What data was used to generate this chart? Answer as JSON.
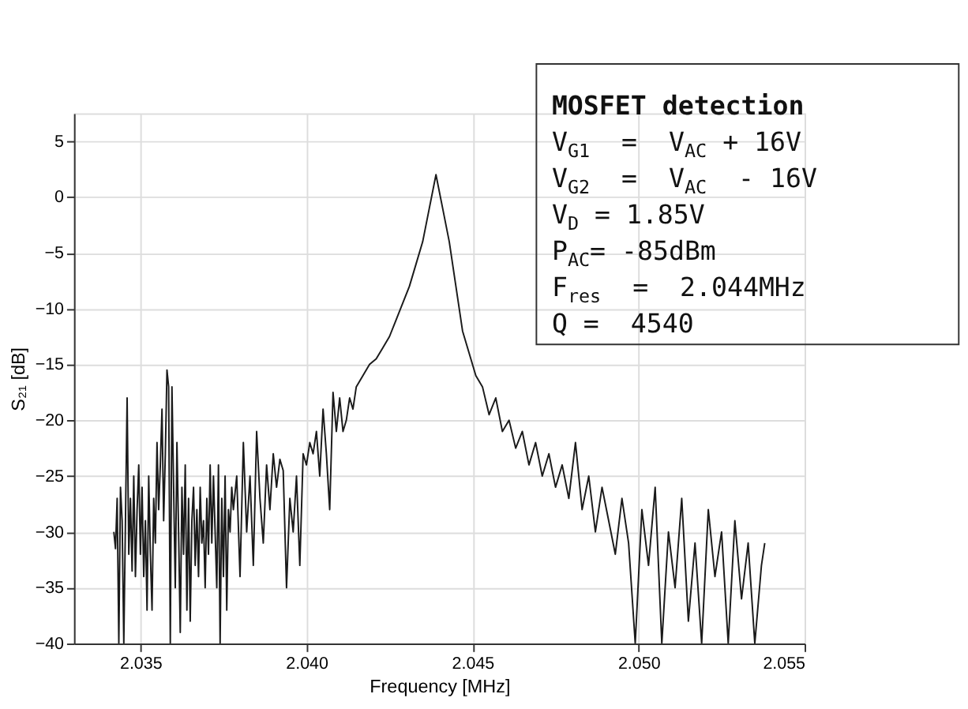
{
  "chart_data": {
    "type": "line",
    "xlabel": "Frequency [MHz]",
    "ylabel": "S₂₁ [dB]",
    "xlim": [
      2.033,
      2.055
    ],
    "xticks": [
      {
        "value": 2.035,
        "label": "2.035"
      },
      {
        "value": 2.04,
        "label": "2.040"
      },
      {
        "value": 2.045,
        "label": "2.045"
      },
      {
        "value": 2.05,
        "label": "2.050"
      },
      {
        "value": 2.055,
        "label": "2.055"
      }
    ],
    "ylim": [
      -40,
      7.5
    ],
    "yticks": [
      -40,
      -35,
      -30,
      -25,
      -20,
      -15,
      -10,
      -5,
      0,
      5
    ],
    "grid": true,
    "line_style": "solid",
    "annotations": [
      "MOSFET detection",
      "V$_{G1}$  =  V$_{AC}$ + 16V",
      "V$_{G2}$  =  V$_{AC}$  - 16V",
      "V$_{D}$ = 1.85V",
      "P$_{AC}$= -85dBm",
      "F$_{res}$  =  2.044MHz",
      "Q =  4540"
    ],
    "series": [
      {
        "color": "#1a1a1a",
        "x": [
          2.0342,
          2.03425,
          2.0343,
          2.03435,
          2.0344,
          2.03445,
          2.0345,
          2.03455,
          2.0346,
          2.03465,
          2.0347,
          2.03475,
          2.0348,
          2.03485,
          2.0349,
          2.03495,
          2.035,
          2.03505,
          2.0351,
          2.03515,
          2.0352,
          2.03525,
          2.0353,
          2.03535,
          2.0354,
          2.03545,
          2.0355,
          2.03555,
          2.0356,
          2.03565,
          2.0357,
          2.03575,
          2.0358,
          2.03585,
          2.0359,
          2.03595,
          2.036,
          2.03605,
          2.0361,
          2.03615,
          2.0362,
          2.03625,
          2.0363,
          2.03635,
          2.0364,
          2.03645,
          2.0365,
          2.03655,
          2.0366,
          2.03665,
          2.0367,
          2.03675,
          2.0368,
          2.03685,
          2.0369,
          2.03695,
          2.037,
          2.03705,
          2.0371,
          2.03715,
          2.0372,
          2.03725,
          2.0373,
          2.03735,
          2.0374,
          2.03745,
          2.0375,
          2.03755,
          2.0376,
          2.03765,
          2.0377,
          2.03775,
          2.0378,
          2.0379,
          2.038,
          2.0381,
          2.0382,
          2.0383,
          2.0384,
          2.0385,
          2.0386,
          2.0387,
          2.0388,
          2.0389,
          2.039,
          2.0391,
          2.0392,
          2.0393,
          2.0394,
          2.0395,
          2.0396,
          2.0397,
          2.0398,
          2.0399,
          2.04,
          2.0401,
          2.0402,
          2.0403,
          2.0404,
          2.0405,
          2.0406,
          2.0407,
          2.0408,
          2.0409,
          2.041,
          2.0411,
          2.0412,
          2.0413,
          2.0414,
          2.0415,
          2.0417,
          2.0419,
          2.0421,
          2.0423,
          2.0425,
          2.0427,
          2.0429,
          2.0431,
          2.0433,
          2.0435,
          2.0437,
          2.0439,
          2.0441,
          2.0443,
          2.0445,
          2.0447,
          2.0449,
          2.0451,
          2.0453,
          2.0455,
          2.0457,
          2.0459,
          2.0461,
          2.0463,
          2.0465,
          2.0467,
          2.0469,
          2.0471,
          2.0473,
          2.0475,
          2.0477,
          2.0479,
          2.0481,
          2.0483,
          2.0485,
          2.0487,
          2.0489,
          2.0491,
          2.0493,
          2.0495,
          2.0497,
          2.0499,
          2.0501,
          2.0503,
          2.0505,
          2.0507,
          2.0509,
          2.0511,
          2.0513,
          2.0515,
          2.0517,
          2.0519,
          2.0521,
          2.0523,
          2.0525,
          2.0527,
          2.0529,
          2.0531,
          2.0533,
          2.0535,
          2.0537,
          2.0538
        ],
        "values": [
          -30,
          -31.5,
          -27,
          -40,
          -26,
          -29,
          -40,
          -29,
          -18,
          -32,
          -27,
          -33.5,
          -25,
          -34,
          -28,
          -24,
          -32,
          -26,
          -34,
          -29,
          -37,
          -25,
          -32,
          -37,
          -27,
          -31,
          -22,
          -28,
          -24,
          -19,
          -29,
          -23,
          -15.5,
          -17,
          -40,
          -17,
          -26,
          -35,
          -22,
          -30,
          -39,
          -26,
          -32,
          -24,
          -37,
          -27,
          -38,
          -29,
          -26,
          -33,
          -28,
          -34,
          -26,
          -31,
          -29,
          -35,
          -27,
          -32,
          -24,
          -31,
          -25,
          -30,
          -35,
          -24,
          -40,
          -27,
          -34,
          -25,
          -37,
          -28,
          -30,
          -26,
          -28,
          -25,
          -34,
          -22,
          -30,
          -25,
          -33,
          -21,
          -27,
          -31,
          -24,
          -28,
          -23,
          -26,
          -23.5,
          -24.5,
          -35,
          -27,
          -30,
          -25,
          -33,
          -23,
          -24,
          -22,
          -23,
          -21,
          -25,
          -19,
          -23,
          -28,
          -17.5,
          -21,
          -18,
          -21,
          -20,
          -18,
          -19,
          -17,
          -16,
          -15,
          -14.5,
          -13.5,
          -12.5,
          -11,
          -9.5,
          -8,
          -6,
          -4,
          -1,
          2,
          -1,
          -4,
          -8,
          -12,
          -14,
          -16,
          -17,
          -19.5,
          -18,
          -21,
          -20,
          -22.5,
          -21,
          -24,
          -22,
          -25,
          -23,
          -26,
          -24,
          -27,
          -22,
          -28,
          -25,
          -30,
          -26,
          -29,
          -32,
          -27,
          -31,
          -40,
          -28,
          -33,
          -26,
          -40,
          -30,
          -35,
          -27,
          -38,
          -31,
          -40,
          -28,
          -34,
          -30,
          -40,
          -29,
          -36,
          -31,
          -40,
          -33,
          -31
        ]
      }
    ]
  }
}
